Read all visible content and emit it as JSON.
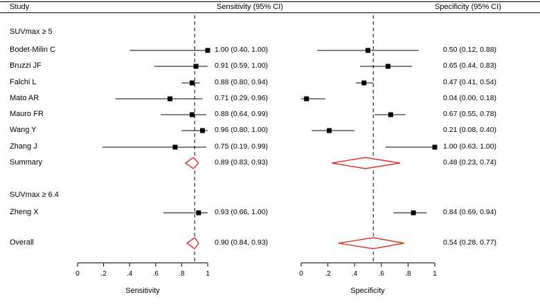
{
  "header": {
    "study": "Study",
    "sensitivity": "Sensitivity (95% CI)",
    "specificity": "Specificity (95% CI)"
  },
  "axes": {
    "tick_labels": [
      "0",
      ".2",
      ".4",
      ".6",
      ".8",
      "1"
    ],
    "tick_values": [
      0,
      0.2,
      0.4,
      0.6,
      0.8,
      1
    ],
    "sensitivity_title": "Sensitivity",
    "specificity_title": "Specificity"
  },
  "colors": {
    "marker": "#000000",
    "line": "#000000",
    "diamond": "#e03127",
    "dashed": "#000000"
  },
  "chart_data": {
    "type": "forest",
    "title": "",
    "legend": "none",
    "dashed_lines": {
      "sensitivity": 0.9,
      "specificity": 0.54
    },
    "x_range": [
      0,
      1
    ],
    "rows": [
      {
        "kind": "group",
        "label": "SUVmax ≥ 5"
      },
      {
        "kind": "study",
        "label": "Bodet-Milin C",
        "sensitivity": {
          "est": 1.0,
          "lo": 0.4,
          "hi": 1.0,
          "text": "1.00 (0.40, 1.00)"
        },
        "specificity": {
          "est": 0.5,
          "lo": 0.12,
          "hi": 0.88,
          "text": "0.50 (0.12, 0.88)"
        }
      },
      {
        "kind": "study",
        "label": "Bruzzi JF",
        "sensitivity": {
          "est": 0.91,
          "lo": 0.59,
          "hi": 1.0,
          "text": "0.91 (0.59, 1.00)"
        },
        "specificity": {
          "est": 0.65,
          "lo": 0.44,
          "hi": 0.83,
          "text": "0.65 (0.44, 0.83)"
        }
      },
      {
        "kind": "study",
        "label": "Falchi L",
        "sensitivity": {
          "est": 0.88,
          "lo": 0.8,
          "hi": 0.94,
          "text": "0.88 (0.80, 0.94)"
        },
        "specificity": {
          "est": 0.47,
          "lo": 0.41,
          "hi": 0.54,
          "text": "0.47 (0.41, 0.54)"
        }
      },
      {
        "kind": "study",
        "label": "Mato AR",
        "sensitivity": {
          "est": 0.71,
          "lo": 0.29,
          "hi": 0.96,
          "text": "0.71 (0.29, 0.96)"
        },
        "specificity": {
          "est": 0.04,
          "lo": 0.0,
          "hi": 0.18,
          "text": "0.04 (0.00, 0.18)"
        }
      },
      {
        "kind": "study",
        "label": "Mauro FR",
        "sensitivity": {
          "est": 0.88,
          "lo": 0.64,
          "hi": 0.99,
          "text": "0.88 (0.64, 0.99)"
        },
        "specificity": {
          "est": 0.67,
          "lo": 0.55,
          "hi": 0.78,
          "text": "0.67 (0.55, 0.78)"
        }
      },
      {
        "kind": "study",
        "label": "Wang Y",
        "sensitivity": {
          "est": 0.96,
          "lo": 0.8,
          "hi": 1.0,
          "text": "0.96 (0.80, 1.00)"
        },
        "specificity": {
          "est": 0.21,
          "lo": 0.08,
          "hi": 0.4,
          "text": "0.21 (0.08, 0.40)"
        }
      },
      {
        "kind": "study",
        "label": "Zhang J",
        "sensitivity": {
          "est": 0.75,
          "lo": 0.19,
          "hi": 0.99,
          "text": "0.75 (0.19, 0.99)"
        },
        "specificity": {
          "est": 1.0,
          "lo": 0.63,
          "hi": 1.0,
          "text": "1.00 (0.63, 1.00)"
        }
      },
      {
        "kind": "summary",
        "label": "Summary",
        "sensitivity": {
          "est": 0.89,
          "lo": 0.83,
          "hi": 0.93,
          "text": "0.89 (0.83, 0.93)"
        },
        "specificity": {
          "est": 0.48,
          "lo": 0.23,
          "hi": 0.74,
          "text": "0.48 (0.23, 0.74)"
        }
      },
      {
        "kind": "group",
        "label": "SUVmax ≥ 6.4"
      },
      {
        "kind": "study",
        "label": "Zheng X",
        "sensitivity": {
          "est": 0.93,
          "lo": 0.66,
          "hi": 1.0,
          "text": "0.93 (0.66, 1.00)"
        },
        "specificity": {
          "est": 0.84,
          "lo": 0.69,
          "hi": 0.94,
          "text": "0.84 (0.69, 0.94)"
        }
      },
      {
        "kind": "summary",
        "label": "Overall",
        "sensitivity": {
          "est": 0.9,
          "lo": 0.84,
          "hi": 0.93,
          "text": "0.90 (0.84, 0.93)"
        },
        "specificity": {
          "est": 0.54,
          "lo": 0.28,
          "hi": 0.77,
          "text": "0.54 (0.28, 0.77)"
        }
      }
    ]
  }
}
